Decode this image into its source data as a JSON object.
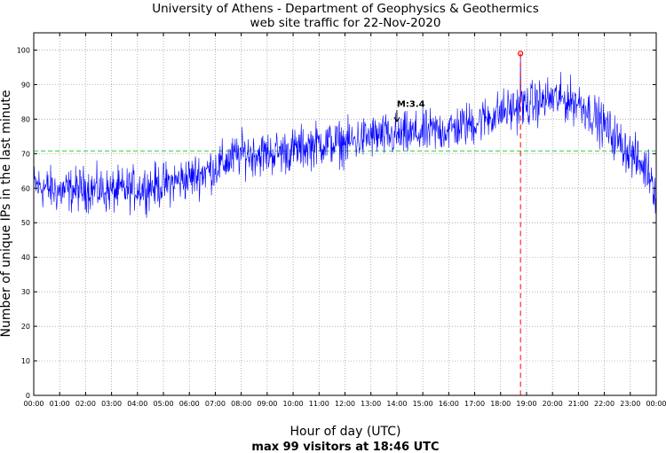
{
  "chart_data": {
    "type": "line",
    "title": "University of Athens - Department of Geophysics & Geothermics",
    "subtitle": "web site traffic for 22-Nov-2020",
    "xlabel": "Hour of day (UTC)",
    "ylabel": "Number of unique IPs in the last minute",
    "footer": "max 99 visitors at 18:46 UTC",
    "x_range_hours": [
      0,
      24
    ],
    "ylim": [
      0,
      105
    ],
    "grid": true,
    "x_tick_labels": [
      "00:00",
      "01:00",
      "02:00",
      "03:00",
      "04:00",
      "05:00",
      "06:00",
      "07:00",
      "08:00",
      "09:00",
      "10:00",
      "11:00",
      "12:00",
      "13:00",
      "14:00",
      "15:00",
      "16:00",
      "17:00",
      "18:00",
      "19:00",
      "20:00",
      "21:00",
      "22:00",
      "23:00",
      "00:00"
    ],
    "y_ticks": [
      0,
      10,
      20,
      30,
      40,
      50,
      60,
      70,
      80,
      90,
      100
    ],
    "mean_line": {
      "value": 70.8,
      "color": "#33cc33"
    },
    "max_marker": {
      "hour": 18.767,
      "value": 99,
      "color": "#ff0000"
    },
    "annotation": {
      "label": "M:3.4",
      "hour": 14.0,
      "value": 79
    },
    "series": [
      {
        "name": "unique IPs",
        "color": "#0000ff",
        "hourly_trend": [
          {
            "hour": 0,
            "value": 61
          },
          {
            "hour": 1,
            "value": 59
          },
          {
            "hour": 2,
            "value": 60
          },
          {
            "hour": 3,
            "value": 59
          },
          {
            "hour": 4,
            "value": 60
          },
          {
            "hour": 5,
            "value": 61
          },
          {
            "hour": 6,
            "value": 63
          },
          {
            "hour": 7,
            "value": 66
          },
          {
            "hour": 8,
            "value": 70
          },
          {
            "hour": 9,
            "value": 70
          },
          {
            "hour": 10,
            "value": 71
          },
          {
            "hour": 11,
            "value": 73
          },
          {
            "hour": 12,
            "value": 73
          },
          {
            "hour": 13,
            "value": 75
          },
          {
            "hour": 14,
            "value": 75
          },
          {
            "hour": 15,
            "value": 76
          },
          {
            "hour": 16,
            "value": 77
          },
          {
            "hour": 17,
            "value": 79
          },
          {
            "hour": 18,
            "value": 82
          },
          {
            "hour": 19,
            "value": 84
          },
          {
            "hour": 20,
            "value": 86
          },
          {
            "hour": 21,
            "value": 85
          },
          {
            "hour": 22,
            "value": 78
          },
          {
            "hour": 23,
            "value": 70
          },
          {
            "hour": 23.8,
            "value": 64
          },
          {
            "hour": 24,
            "value": 58
          }
        ],
        "noise_amplitude": 4.5
      }
    ]
  }
}
